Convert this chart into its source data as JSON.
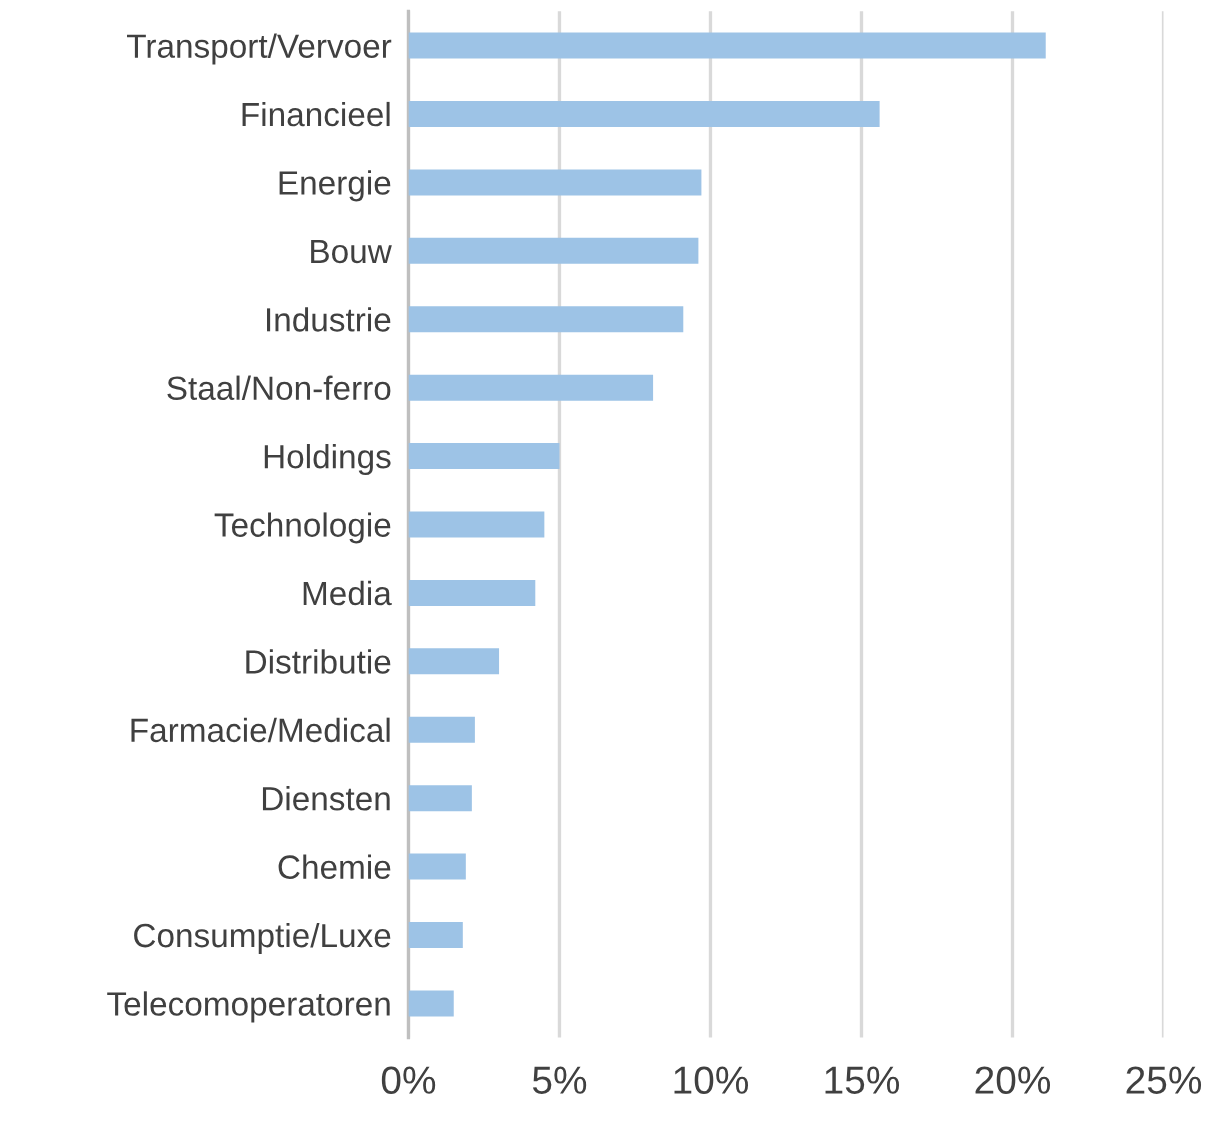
{
  "chart_data": {
    "type": "bar",
    "orientation": "horizontal",
    "categories": [
      "Transport/Vervoer",
      "Financieel",
      "Energie",
      "Bouw",
      "Industrie",
      "Staal/Non-ferro",
      "Holdings",
      "Technologie",
      "Media",
      "Distributie",
      "Farmacie/Medical",
      "Diensten",
      "Chemie",
      "Consumptie/Luxe",
      "Telecomoperatoren"
    ],
    "values": [
      21.1,
      15.6,
      9.7,
      9.6,
      9.1,
      8.1,
      5.0,
      4.5,
      4.2,
      3.0,
      2.2,
      2.1,
      1.9,
      1.8,
      1.5
    ],
    "color": "#9dc3e6",
    "xlim": [
      0,
      25
    ],
    "xticks": [
      {
        "value": 0,
        "label": "0%"
      },
      {
        "value": 5,
        "label": "5%"
      },
      {
        "value": 10,
        "label": "10%"
      },
      {
        "value": 15,
        "label": "15%"
      },
      {
        "value": 20,
        "label": "20%"
      },
      {
        "value": 25,
        "label": "25%"
      }
    ],
    "grid": "x",
    "legend": false
  }
}
